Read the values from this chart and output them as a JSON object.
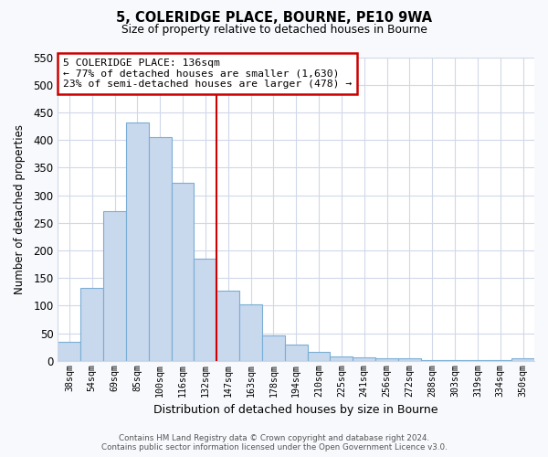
{
  "title": "5, COLERIDGE PLACE, BOURNE, PE10 9WA",
  "subtitle": "Size of property relative to detached houses in Bourne",
  "xlabel": "Distribution of detached houses by size in Bourne",
  "ylabel": "Number of detached properties",
  "bar_labels": [
    "38sqm",
    "54sqm",
    "69sqm",
    "85sqm",
    "100sqm",
    "116sqm",
    "132sqm",
    "147sqm",
    "163sqm",
    "178sqm",
    "194sqm",
    "210sqm",
    "225sqm",
    "241sqm",
    "256sqm",
    "272sqm",
    "288sqm",
    "303sqm",
    "319sqm",
    "334sqm",
    "350sqm"
  ],
  "bar_values": [
    35,
    133,
    272,
    432,
    405,
    323,
    185,
    128,
    103,
    46,
    30,
    17,
    8,
    6,
    4,
    4,
    2,
    2,
    2,
    2,
    5
  ],
  "bar_color": "#c8d8ed",
  "bar_edge_color": "#7aaed4",
  "vline_color": "#cc0000",
  "vline_x_index": 6,
  "annotation_title": "5 COLERIDGE PLACE: 136sqm",
  "annotation_line1": "← 77% of detached houses are smaller (1,630)",
  "annotation_line2": "23% of semi-detached houses are larger (478) →",
  "annotation_box_facecolor": "#ffffff",
  "annotation_box_edgecolor": "#cc0000",
  "ylim": [
    0,
    550
  ],
  "yticks": [
    0,
    50,
    100,
    150,
    200,
    250,
    300,
    350,
    400,
    450,
    500,
    550
  ],
  "plot_bg_color": "#ffffff",
  "fig_bg_color": "#f8f9fc",
  "grid_color": "#d0d8e8",
  "footer_line1": "Contains HM Land Registry data © Crown copyright and database right 2024.",
  "footer_line2": "Contains public sector information licensed under the Open Government Licence v3.0."
}
